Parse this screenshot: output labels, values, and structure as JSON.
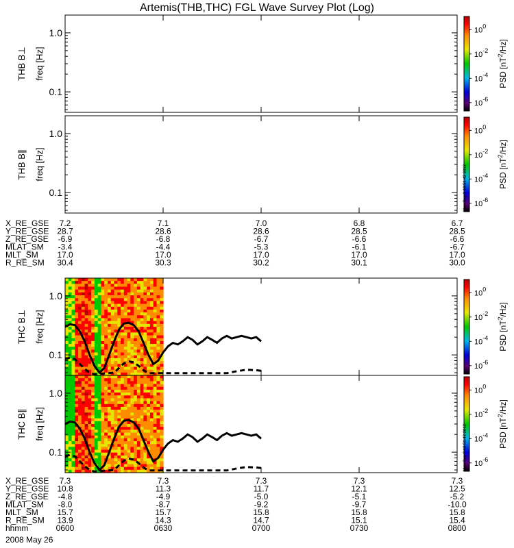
{
  "title": "Artemis(THB,THC) FGL Wave Survey Plot (Log)",
  "stamp": "Mon Sep 3 19:51:42 2012",
  "chart_data": {
    "type": "heatmap",
    "y_scale": "log",
    "freq_ticks": [
      "1.0",
      "0.1"
    ],
    "psd_ticks": [
      {
        "base": "10",
        "exp": "0"
      },
      {
        "base": "10",
        "exp": "-2"
      },
      {
        "base": "10",
        "exp": "-4"
      },
      {
        "base": "10",
        "exp": "-6"
      }
    ],
    "colorbar_label": {
      "main": "PSD [nT",
      "sup": "2",
      "tail": "/Hz]"
    },
    "freq_label": "freq [Hz]",
    "panels": [
      {
        "id": "thb-bperp",
        "probe": "THB B⊥",
        "data": false
      },
      {
        "id": "thb-bpar",
        "probe": "THB B∥",
        "data": false,
        "stamp": true
      },
      {
        "id": "thc-bperp",
        "probe": "THC B⊥",
        "data": true
      },
      {
        "id": "thc-bpar",
        "probe": "THC B∥",
        "data": true,
        "stamp": true
      }
    ],
    "ephemeris": [
      {
        "rows": [
          {
            "label": "X_RE_GSE",
            "values": [
              "7.2",
              "7.1",
              "7.0",
              "6.8",
              "6.7"
            ]
          },
          {
            "label": "Y_RE_GSE",
            "values": [
              "28.7",
              "28.6",
              "28.6",
              "28.5",
              "28.5"
            ]
          },
          {
            "label": "Z_RE_GSE",
            "values": [
              "-6.9",
              "-6.8",
              "-6.7",
              "-6.6",
              "-6.6"
            ]
          },
          {
            "label": "MLAT_SM",
            "values": [
              "-3.4",
              "-4.4",
              "-5.3",
              "-6.1",
              "-6.7"
            ]
          },
          {
            "label": "MLT_SM",
            "values": [
              "17.0",
              "17.0",
              "17.0",
              "17.0",
              "17.0"
            ]
          },
          {
            "label": "R_RE_SM",
            "values": [
              "30.4",
              "30.3",
              "30.2",
              "30.1",
              "30.0"
            ]
          }
        ]
      },
      {
        "rows": [
          {
            "label": "X_RE_GSE",
            "values": [
              "7.3",
              "7.3",
              "7.3",
              "7.3",
              "7.3"
            ]
          },
          {
            "label": "Y_RE_GSE",
            "values": [
              "10.8",
              "11.3",
              "11.7",
              "12.1",
              "12.5"
            ]
          },
          {
            "label": "Z_RE_GSE",
            "values": [
              "-4.8",
              "-4.9",
              "-5.0",
              "-5.1",
              "-5.2"
            ]
          },
          {
            "label": "MLAT_SM",
            "values": [
              "-8.0",
              "-8.7",
              "-9.2",
              "-9.7",
              "-10.0"
            ]
          },
          {
            "label": "MLT_SM",
            "values": [
              "15.7",
              "15.7",
              "15.8",
              "15.8",
              "15.8"
            ]
          },
          {
            "label": "R_RE_SM",
            "values": [
              "13.9",
              "14.3",
              "14.7",
              "15.1",
              "15.4"
            ]
          },
          {
            "label": "hhmm",
            "values": [
              "0600",
              "0630",
              "0700",
              "0730",
              "0800"
            ]
          }
        ]
      }
    ],
    "date": "2008 May 26",
    "freq_range_hz": [
      0.045,
      2.0
    ],
    "time_range_hhmm": [
      "0600",
      "0800"
    ],
    "data_end_hhmm": "0630",
    "solid_curve_hz": [
      [
        0,
        0.3
      ],
      [
        1.5,
        0.33
      ],
      [
        3,
        0.32
      ],
      [
        4.5,
        0.25
      ],
      [
        6,
        0.17
      ],
      [
        7.5,
        0.1
      ],
      [
        9,
        0.065
      ],
      [
        10.5,
        0.05
      ],
      [
        12,
        0.06
      ],
      [
        13.5,
        0.1
      ],
      [
        15,
        0.17
      ],
      [
        16.5,
        0.27
      ],
      [
        18,
        0.34
      ],
      [
        19.5,
        0.35
      ],
      [
        21,
        0.32
      ],
      [
        22.5,
        0.25
      ],
      [
        24,
        0.16
      ],
      [
        25.5,
        0.1
      ],
      [
        27,
        0.07
      ],
      [
        28.5,
        0.08
      ],
      [
        30,
        0.11
      ],
      [
        31.5,
        0.14
      ],
      [
        33,
        0.16
      ],
      [
        34.5,
        0.15
      ],
      [
        36,
        0.17
      ],
      [
        37.5,
        0.2
      ],
      [
        39,
        0.18
      ],
      [
        40.5,
        0.15
      ],
      [
        42,
        0.17
      ],
      [
        43.5,
        0.2
      ],
      [
        45,
        0.18
      ],
      [
        46.5,
        0.16
      ],
      [
        48,
        0.19
      ],
      [
        49.5,
        0.21
      ],
      [
        51,
        0.19
      ],
      [
        52.5,
        0.2
      ],
      [
        54,
        0.21
      ],
      [
        55.5,
        0.2
      ],
      [
        57,
        0.19
      ],
      [
        58.5,
        0.2
      ],
      [
        60,
        0.17
      ]
    ],
    "dashed_curve_hz": [
      [
        0,
        0.085
      ],
      [
        1.5,
        0.09
      ],
      [
        3,
        0.085
      ],
      [
        4.5,
        0.07
      ],
      [
        6,
        0.058
      ],
      [
        7.5,
        0.05
      ],
      [
        9,
        0.047
      ],
      [
        15,
        0.05
      ],
      [
        16.5,
        0.06
      ],
      [
        18,
        0.072
      ],
      [
        19.5,
        0.078
      ],
      [
        21,
        0.075
      ],
      [
        22.5,
        0.065
      ],
      [
        24,
        0.055
      ],
      [
        25.5,
        0.049
      ],
      [
        49.5,
        0.049
      ],
      [
        52.5,
        0.053
      ],
      [
        55.5,
        0.056
      ],
      [
        58.5,
        0.055
      ],
      [
        60,
        0.054
      ]
    ]
  }
}
